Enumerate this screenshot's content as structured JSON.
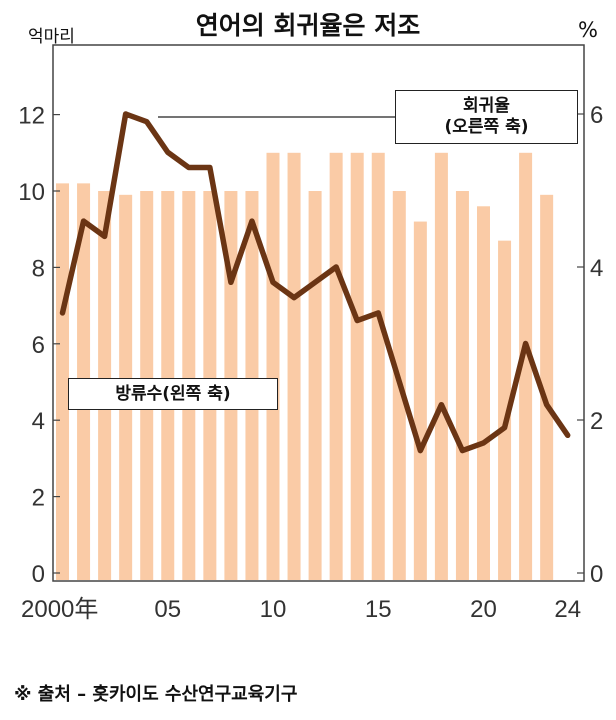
{
  "title": "연어의 회귀율은 저조",
  "chart_data": {
    "type": "bar+line",
    "title": "연어의 회귀율은 저조",
    "left_axis_unit": "억마리",
    "right_axis_unit": "%",
    "x": [
      2000,
      2001,
      2002,
      2003,
      2004,
      2005,
      2006,
      2007,
      2008,
      2009,
      2010,
      2011,
      2012,
      2013,
      2014,
      2015,
      2016,
      2017,
      2018,
      2019,
      2020,
      2021,
      2022,
      2023,
      2024
    ],
    "x_tick_labels": [
      "2000年",
      "05",
      "10",
      "15",
      "20",
      "24"
    ],
    "left_ticks": [
      "0",
      "2",
      "4",
      "6",
      "8",
      "10",
      "12"
    ],
    "right_ticks": [
      "0",
      "2",
      "4",
      "6"
    ],
    "ylim_left": [
      0,
      13.5
    ],
    "ylim_right": [
      0,
      6.6
    ],
    "series": [
      {
        "name": "방류수(왼쪽 축)",
        "type": "bar",
        "axis": "left",
        "color": "#FACBA6",
        "values": [
          10.2,
          10.2,
          10.0,
          9.9,
          10.0,
          10.0,
          10.0,
          10.0,
          10.0,
          10.0,
          11.0,
          11.0,
          10.0,
          11.0,
          11.0,
          11.0,
          10.0,
          9.2,
          11.0,
          10.0,
          9.6,
          8.7,
          11.0,
          9.9,
          null
        ]
      },
      {
        "name": "회귀율\n(오른쪽 축)",
        "type": "line",
        "axis": "right",
        "color": "#6B3514",
        "values": [
          3.4,
          4.6,
          4.4,
          6.0,
          5.9,
          5.5,
          5.3,
          5.3,
          3.8,
          4.6,
          3.8,
          3.6,
          3.8,
          4.0,
          3.3,
          3.4,
          2.5,
          1.6,
          2.2,
          1.6,
          1.7,
          1.9,
          3.0,
          2.2,
          1.8
        ]
      }
    ],
    "annotations": {
      "rate_callout_line1": "회귀율",
      "rate_callout_line2": "(오른쪽 축)",
      "release_callout": "방류수(왼쪽 축)"
    }
  },
  "source": "※ 출처 – 홋카이도 수산연구교육기구"
}
